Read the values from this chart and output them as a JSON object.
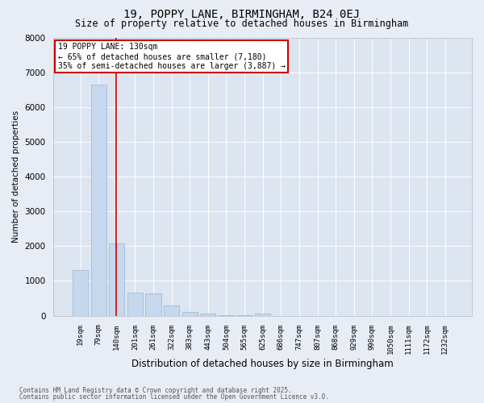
{
  "title1": "19, POPPY LANE, BIRMINGHAM, B24 0EJ",
  "title2": "Size of property relative to detached houses in Birmingham",
  "xlabel": "Distribution of detached houses by size in Birmingham",
  "ylabel": "Number of detached properties",
  "categories": [
    "19sqm",
    "79sqm",
    "140sqm",
    "201sqm",
    "261sqm",
    "322sqm",
    "383sqm",
    "443sqm",
    "504sqm",
    "565sqm",
    "625sqm",
    "686sqm",
    "747sqm",
    "807sqm",
    "868sqm",
    "929sqm",
    "990sqm",
    "1050sqm",
    "1111sqm",
    "1172sqm",
    "1232sqm"
  ],
  "values": [
    1310,
    6650,
    2080,
    660,
    640,
    290,
    115,
    60,
    25,
    10,
    50,
    0,
    0,
    0,
    0,
    0,
    0,
    0,
    0,
    0,
    0
  ],
  "bar_color": "#c5d8ed",
  "bar_edge_color": "#a0bcd8",
  "fig_bg_color": "#e8edf5",
  "ax_bg_color": "#dce5f0",
  "grid_color": "#ffffff",
  "red_line_x": 1.95,
  "annotation_text": "19 POPPY LANE: 130sqm\n← 65% of detached houses are smaller (7,180)\n35% of semi-detached houses are larger (3,887) →",
  "annotation_box_color": "#ffffff",
  "annotation_text_color": "#000000",
  "annotation_border_color": "#cc0000",
  "ylim": [
    0,
    8000
  ],
  "yticks": [
    0,
    1000,
    2000,
    3000,
    4000,
    5000,
    6000,
    7000,
    8000
  ],
  "footer1": "Contains HM Land Registry data © Crown copyright and database right 2025.",
  "footer2": "Contains public sector information licensed under the Open Government Licence v3.0."
}
